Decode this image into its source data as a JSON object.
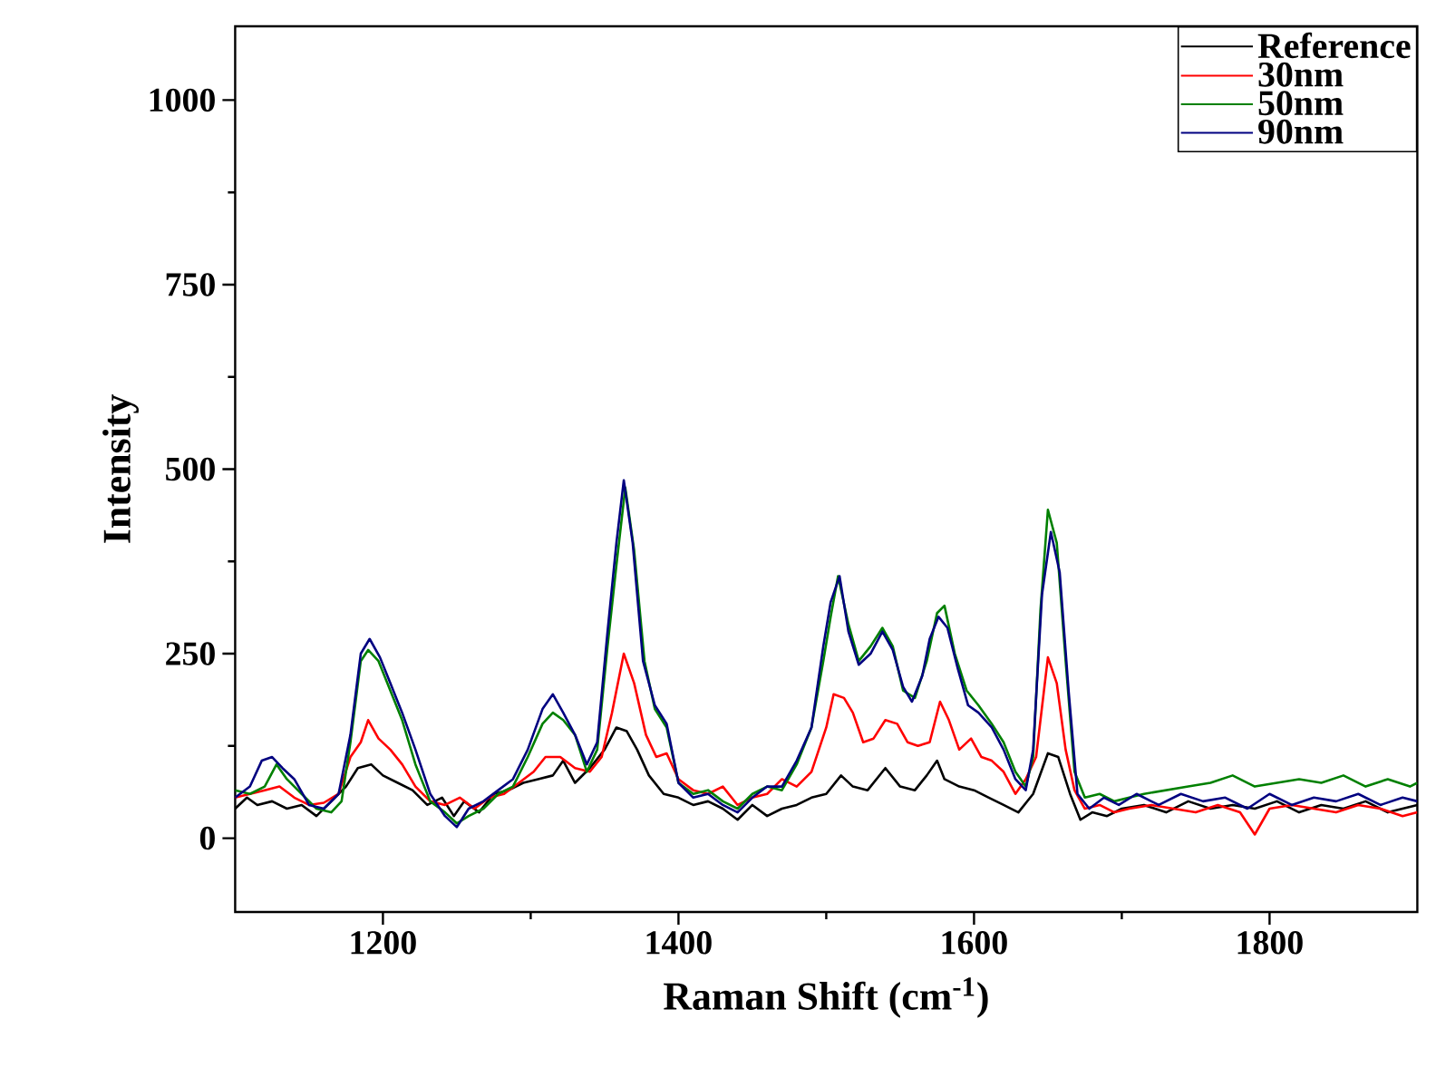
{
  "chart_data": {
    "type": "line",
    "xlabel": "Raman Shift (cm$^{-1}$)",
    "ylabel": "Intensity",
    "xlim": [
      1100,
      1900
    ],
    "xticks": [
      1200,
      1400,
      1600,
      1800
    ],
    "ylim": [
      -100,
      1100
    ],
    "yticks": [
      0,
      250,
      500,
      750,
      1000
    ],
    "grid": false,
    "legend": "top right",
    "marker": "none",
    "line_style": "solid",
    "series": [
      {
        "name": "Reference",
        "color": "#000000",
        "x": [
          1100,
          1108,
          1115,
          1125,
          1135,
          1145,
          1155,
          1165,
          1175,
          1183,
          1192,
          1200,
          1210,
          1220,
          1230,
          1240,
          1248,
          1255,
          1265,
          1275,
          1285,
          1295,
          1305,
          1315,
          1322,
          1330,
          1340,
          1350,
          1358,
          1365,
          1372,
          1380,
          1390,
          1400,
          1410,
          1420,
          1430,
          1440,
          1450,
          1460,
          1470,
          1480,
          1490,
          1500,
          1510,
          1518,
          1528,
          1540,
          1550,
          1560,
          1568,
          1575,
          1580,
          1590,
          1600,
          1610,
          1620,
          1630,
          1640,
          1650,
          1657,
          1665,
          1672,
          1680,
          1690,
          1700,
          1715,
          1730,
          1745,
          1760,
          1775,
          1790,
          1805,
          1820,
          1835,
          1850,
          1865,
          1880,
          1890,
          1900
        ],
        "values": [
          40,
          55,
          45,
          50,
          40,
          45,
          30,
          50,
          70,
          95,
          100,
          85,
          75,
          65,
          45,
          55,
          30,
          50,
          35,
          60,
          65,
          75,
          80,
          85,
          105,
          75,
          95,
          120,
          150,
          145,
          120,
          85,
          60,
          55,
          45,
          50,
          40,
          25,
          45,
          30,
          40,
          45,
          55,
          60,
          85,
          70,
          65,
          95,
          70,
          65,
          85,
          105,
          80,
          70,
          65,
          55,
          45,
          35,
          60,
          115,
          110,
          60,
          25,
          35,
          30,
          40,
          45,
          35,
          50,
          40,
          45,
          40,
          50,
          35,
          45,
          40,
          50,
          35,
          40,
          45
        ]
      },
      {
        "name": "30nm",
        "color": "#ff0000",
        "x": [
          1100,
          1110,
          1120,
          1130,
          1140,
          1150,
          1160,
          1170,
          1178,
          1185,
          1190,
          1197,
          1205,
          1213,
          1222,
          1232,
          1242,
          1252,
          1262,
          1272,
          1282,
          1292,
          1302,
          1310,
          1320,
          1330,
          1340,
          1348,
          1355,
          1363,
          1370,
          1378,
          1385,
          1392,
          1400,
          1410,
          1420,
          1430,
          1440,
          1450,
          1460,
          1470,
          1480,
          1490,
          1500,
          1505,
          1512,
          1518,
          1525,
          1532,
          1540,
          1548,
          1555,
          1562,
          1570,
          1577,
          1583,
          1590,
          1598,
          1605,
          1612,
          1620,
          1628,
          1635,
          1642,
          1650,
          1656,
          1662,
          1668,
          1675,
          1685,
          1695,
          1705,
          1720,
          1735,
          1750,
          1765,
          1780,
          1790,
          1800,
          1815,
          1830,
          1845,
          1860,
          1875,
          1890,
          1900
        ],
        "values": [
          55,
          60,
          65,
          70,
          55,
          45,
          48,
          60,
          110,
          130,
          160,
          135,
          120,
          100,
          70,
          50,
          45,
          55,
          40,
          55,
          60,
          75,
          90,
          110,
          110,
          95,
          90,
          110,
          170,
          250,
          210,
          140,
          110,
          115,
          80,
          65,
          60,
          70,
          45,
          55,
          60,
          80,
          70,
          90,
          150,
          195,
          190,
          170,
          130,
          135,
          160,
          155,
          130,
          125,
          130,
          185,
          160,
          120,
          135,
          110,
          105,
          90,
          60,
          80,
          110,
          245,
          210,
          120,
          65,
          40,
          45,
          35,
          40,
          45,
          40,
          35,
          45,
          35,
          5,
          40,
          45,
          40,
          35,
          45,
          40,
          30,
          35
        ]
      },
      {
        "name": "50nm",
        "color": "#008000",
        "x": [
          1100,
          1110,
          1120,
          1128,
          1135,
          1145,
          1155,
          1165,
          1172,
          1178,
          1185,
          1190,
          1197,
          1205,
          1213,
          1222,
          1232,
          1242,
          1250,
          1258,
          1268,
          1278,
          1288,
          1298,
          1308,
          1315,
          1322,
          1330,
          1338,
          1345,
          1352,
          1358,
          1364,
          1370,
          1377,
          1384,
          1392,
          1400,
          1410,
          1420,
          1430,
          1440,
          1450,
          1460,
          1470,
          1480,
          1490,
          1498,
          1503,
          1508,
          1515,
          1522,
          1530,
          1538,
          1545,
          1552,
          1560,
          1568,
          1575,
          1580,
          1587,
          1595,
          1603,
          1612,
          1620,
          1628,
          1635,
          1640,
          1645,
          1650,
          1656,
          1662,
          1668,
          1675,
          1685,
          1695,
          1705,
          1715,
          1730,
          1745,
          1760,
          1775,
          1790,
          1805,
          1820,
          1835,
          1850,
          1865,
          1880,
          1895,
          1900
        ],
        "values": [
          65,
          60,
          70,
          100,
          80,
          60,
          40,
          35,
          50,
          130,
          240,
          255,
          240,
          200,
          160,
          100,
          50,
          35,
          20,
          30,
          40,
          60,
          70,
          110,
          155,
          170,
          160,
          140,
          90,
          120,
          260,
          370,
          475,
          390,
          240,
          175,
          150,
          75,
          60,
          65,
          50,
          40,
          60,
          70,
          65,
          100,
          150,
          240,
          300,
          355,
          290,
          240,
          260,
          285,
          260,
          200,
          190,
          240,
          305,
          315,
          250,
          200,
          180,
          155,
          130,
          90,
          70,
          110,
          310,
          445,
          400,
          240,
          90,
          55,
          60,
          50,
          55,
          60,
          65,
          70,
          75,
          85,
          70,
          75,
          80,
          75,
          85,
          70,
          80,
          70,
          75
        ]
      },
      {
        "name": "90nm",
        "color": "#000080",
        "x": [
          1100,
          1110,
          1118,
          1125,
          1132,
          1140,
          1150,
          1160,
          1170,
          1178,
          1185,
          1191,
          1198,
          1205,
          1213,
          1222,
          1232,
          1242,
          1250,
          1258,
          1268,
          1278,
          1288,
          1298,
          1308,
          1315,
          1322,
          1330,
          1338,
          1345,
          1352,
          1358,
          1363,
          1369,
          1376,
          1384,
          1392,
          1400,
          1410,
          1420,
          1430,
          1440,
          1450,
          1460,
          1470,
          1480,
          1490,
          1498,
          1503,
          1509,
          1515,
          1522,
          1530,
          1538,
          1545,
          1552,
          1558,
          1565,
          1570,
          1576,
          1582,
          1589,
          1596,
          1603,
          1612,
          1620,
          1628,
          1635,
          1640,
          1646,
          1652,
          1658,
          1664,
          1670,
          1678,
          1688,
          1698,
          1710,
          1725,
          1740,
          1755,
          1770,
          1785,
          1800,
          1815,
          1830,
          1845,
          1860,
          1875,
          1890,
          1900
        ],
        "values": [
          55,
          70,
          105,
          110,
          95,
          80,
          45,
          40,
          60,
          140,
          250,
          270,
          245,
          210,
          170,
          120,
          60,
          30,
          15,
          40,
          50,
          65,
          80,
          120,
          175,
          195,
          170,
          140,
          100,
          130,
          280,
          400,
          485,
          400,
          240,
          180,
          155,
          75,
          55,
          60,
          45,
          35,
          55,
          70,
          70,
          105,
          150,
          260,
          320,
          355,
          280,
          235,
          250,
          280,
          255,
          205,
          185,
          220,
          270,
          300,
          285,
          230,
          180,
          170,
          150,
          120,
          80,
          65,
          120,
          330,
          415,
          360,
          200,
          60,
          40,
          55,
          45,
          60,
          45,
          60,
          50,
          55,
          40,
          60,
          45,
          55,
          50,
          60,
          45,
          55,
          50
        ]
      }
    ]
  }
}
